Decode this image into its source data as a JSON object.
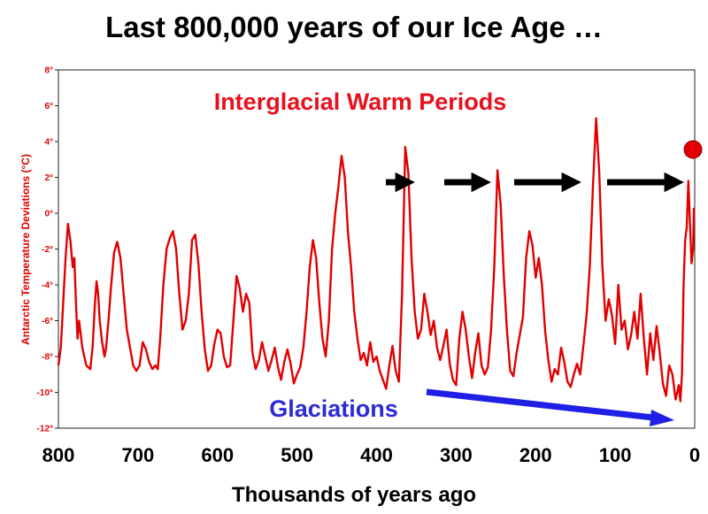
{
  "chart_data": {
    "type": "line",
    "title": "Last 800,000 years of our Ice Age …",
    "xlabel": "Thousands of years ago",
    "ylabel": "Antarctic Temperature Deviations (°C)",
    "xlim": [
      800,
      0
    ],
    "ylim": [
      -12,
      8
    ],
    "x_ticks": [
      "800",
      "700",
      "600",
      "500",
      "400",
      "300",
      "200",
      "100",
      "0"
    ],
    "y_ticks": [
      "8°",
      "6°",
      "4°",
      "2°",
      "0°",
      "-2°",
      "-4°",
      "-6°",
      "-8°",
      "-10°",
      "-12°"
    ],
    "grid": false,
    "annotations": {
      "warm": "Interglacial Warm Periods",
      "cold": "Glaciations"
    },
    "colors": {
      "series": "#e00000",
      "cold_arrow": "#1f1fe6",
      "warm_arrows": "#000000",
      "present_dot": "#e00000"
    },
    "series": [
      {
        "x": [
          800,
          797,
          794,
          791,
          788,
          785,
          782,
          780,
          778,
          776,
          774,
          770,
          765,
          760,
          757,
          754,
          752,
          750,
          748,
          745,
          742,
          740,
          737,
          734,
          730,
          726,
          722,
          718,
          714,
          710,
          706,
          702,
          698,
          694,
          690,
          686,
          682,
          678,
          675,
          672,
          668,
          664,
          660,
          656,
          652,
          648,
          644,
          640,
          636,
          632,
          628,
          624,
          620,
          616,
          612,
          608,
          604,
          600,
          596,
          592,
          588,
          584,
          580,
          576,
          572,
          568,
          564,
          560,
          556,
          552,
          548,
          544,
          540,
          536,
          532,
          528,
          524,
          520,
          516,
          512,
          508,
          504,
          500,
          496,
          492,
          488,
          484,
          480,
          476,
          472,
          468,
          464,
          460,
          456,
          452,
          448,
          444,
          440,
          436,
          432,
          428,
          424,
          420,
          416,
          412,
          408,
          404,
          400,
          396,
          392,
          388,
          384,
          380,
          376,
          372,
          368,
          364,
          360,
          356,
          352,
          348,
          344,
          340,
          336,
          332,
          328,
          324,
          320,
          316,
          312,
          308,
          304,
          300,
          296,
          292,
          288,
          284,
          280,
          276,
          272,
          268,
          264,
          260,
          256,
          252,
          248,
          244,
          240,
          236,
          232,
          228,
          224,
          220,
          216,
          212,
          208,
          204,
          200,
          196,
          192,
          188,
          184,
          180,
          176,
          172,
          168,
          164,
          160,
          156,
          152,
          148,
          144,
          140,
          136,
          132,
          128,
          124,
          120,
          116,
          112,
          108,
          104,
          100,
          96,
          92,
          88,
          84,
          80,
          76,
          72,
          68,
          64,
          60,
          56,
          52,
          48,
          44,
          40,
          36,
          32,
          28,
          24,
          20,
          18,
          16,
          14,
          12,
          10,
          8,
          6,
          4,
          2,
          1
        ],
        "y": [
          -8.5,
          -7.5,
          -5,
          -2.5,
          -0.6,
          -1.5,
          -3,
          -2.5,
          -5,
          -7,
          -6,
          -7.5,
          -8.5,
          -8.7,
          -7.5,
          -5,
          -3.8,
          -4.5,
          -6,
          -7.2,
          -8,
          -7.5,
          -6,
          -4.2,
          -2.2,
          -1.6,
          -2.5,
          -4.5,
          -6.5,
          -7.5,
          -8.5,
          -8.8,
          -8.5,
          -7.2,
          -7.6,
          -8.3,
          -8.7,
          -8.5,
          -8.7,
          -7,
          -4,
          -2,
          -1.4,
          -1,
          -2,
          -4.5,
          -6.5,
          -6,
          -4.5,
          -1.5,
          -1.2,
          -2.8,
          -5.5,
          -7.6,
          -8.8,
          -8.5,
          -7.3,
          -6.5,
          -6.7,
          -8,
          -8.6,
          -8.5,
          -6,
          -3.5,
          -4.2,
          -5.5,
          -4.5,
          -5,
          -7.8,
          -8.7,
          -8.2,
          -7.2,
          -8,
          -8.8,
          -8.2,
          -7.5,
          -8.6,
          -9.3,
          -8.3,
          -7.6,
          -8.4,
          -9.5,
          -9,
          -8.6,
          -7.5,
          -5.5,
          -3,
          -1.5,
          -2.5,
          -5,
          -7,
          -8,
          -6,
          -2,
          0,
          1.5,
          3.2,
          2,
          -1,
          -3,
          -5.5,
          -7,
          -8.2,
          -7.8,
          -8.5,
          -7.2,
          -8.3,
          -8,
          -8.8,
          -9.3,
          -9.8,
          -8.5,
          -7.4,
          -8.8,
          -9.4,
          -4.5,
          3.7,
          2.2,
          -2.5,
          -5.5,
          -7,
          -6.5,
          -4.5,
          -5.5,
          -6.8,
          -6,
          -7.5,
          -8.2,
          -7.4,
          -6.5,
          -8.4,
          -9.3,
          -9.6,
          -7,
          -5.5,
          -6.5,
          -8,
          -9.2,
          -7.8,
          -6.7,
          -8.5,
          -9,
          -8.6,
          -6.5,
          -3,
          2.4,
          0.5,
          -3.5,
          -6.6,
          -8.8,
          -9.1,
          -7.8,
          -6.8,
          -5.8,
          -2.5,
          -1,
          -1.8,
          -3.6,
          -2.5,
          -4,
          -6.6,
          -8.2,
          -9.4,
          -8.7,
          -9,
          -7.5,
          -8.3,
          -9.4,
          -9.7,
          -9,
          -8.4,
          -9,
          -7.4,
          -5.7,
          -3,
          1.5,
          5.3,
          2.3,
          -3,
          -6,
          -4.8,
          -5.7,
          -7.3,
          -4,
          -6.5,
          -6,
          -7.6,
          -6.8,
          -5.5,
          -7,
          -4.5,
          -7,
          -9,
          -6.7,
          -8.2,
          -6.3,
          -7.8,
          -9.5,
          -10.2,
          -8.5,
          -9,
          -10.4,
          -9.6,
          -10.5,
          -9,
          -4,
          -1.5,
          -0.8,
          1.8,
          -0.5,
          -2.8,
          -2,
          0.3
        ]
      }
    ]
  }
}
